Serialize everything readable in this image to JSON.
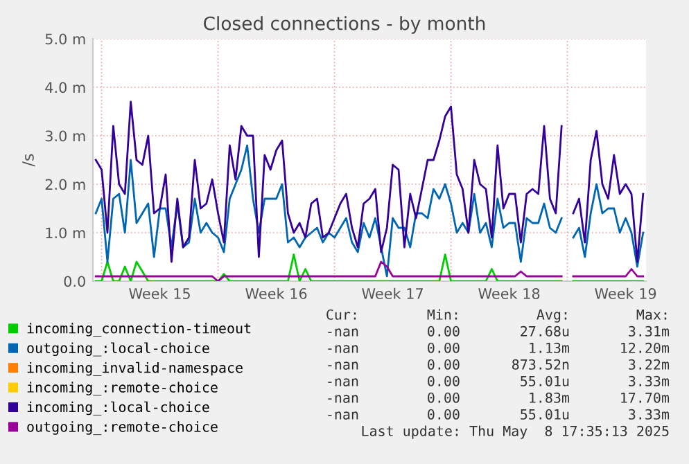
{
  "chart_data": {
    "type": "line",
    "title": "Closed connections - by month",
    "ylabel": "/s",
    "categories": [
      null,
      null,
      null,
      null,
      null,
      null,
      null,
      null,
      null,
      null,
      null,
      "Week 15",
      null,
      null,
      null,
      null,
      null,
      null,
      null,
      null,
      null,
      null,
      null,
      null,
      null,
      null,
      null,
      null,
      null,
      null,
      null,
      "Week 16",
      null,
      null,
      null,
      null,
      null,
      null,
      null,
      null,
      null,
      null,
      null,
      null,
      null,
      null,
      null,
      null,
      null,
      null,
      null,
      "Week 17",
      null,
      null,
      null,
      null,
      null,
      null,
      null,
      null,
      null,
      null,
      null,
      null,
      null,
      null,
      null,
      null,
      null,
      null,
      null,
      "Week 18",
      null,
      null,
      null,
      null,
      null,
      null,
      null,
      null,
      null,
      null,
      null,
      null,
      null,
      null,
      null,
      null,
      null,
      null,
      null,
      "Week 19",
      null,
      null,
      null
    ],
    "ylim": [
      0,
      5.0
    ],
    "yticks": [
      {
        "value": 0,
        "label": "0.0"
      },
      {
        "value": 1.0,
        "label": "1.0 m"
      },
      {
        "value": 2.0,
        "label": "2.0 m"
      },
      {
        "value": 3.0,
        "label": "3.0 m"
      },
      {
        "value": 4.0,
        "label": "4.0 m"
      },
      {
        "value": 5.0,
        "label": "5.0 m"
      }
    ],
    "grid": true,
    "legend": "bottom",
    "marker": "none",
    "line_style": "solid",
    "series": [
      {
        "name": "incoming_connection-timeout",
        "color": "#00cc00",
        "values": [
          0,
          0,
          0.4,
          0,
          0,
          0.3,
          0,
          0.4,
          0.2,
          0,
          0,
          0,
          0,
          0,
          0,
          0,
          0,
          0,
          0,
          0,
          0,
          0,
          0.15,
          0,
          0,
          0,
          0,
          0,
          0,
          0,
          0,
          0,
          0,
          0,
          0.55,
          0,
          0.25,
          0,
          0,
          0,
          0,
          0,
          0,
          0,
          0,
          0,
          0,
          0,
          0,
          0,
          0,
          0,
          0,
          0,
          0,
          0,
          0,
          0,
          0,
          0,
          0.55,
          0,
          0,
          0,
          0,
          0,
          0,
          0,
          0.25,
          0,
          0,
          0,
          0,
          0,
          0,
          0,
          0,
          0,
          0,
          0,
          0,
          null,
          0,
          0,
          0,
          0,
          0,
          0,
          0,
          0,
          0,
          0,
          0,
          0,
          0
        ]
      },
      {
        "name": "outgoing_:local-choice",
        "color": "#0066b3",
        "values": [
          1.4,
          1.7,
          0.4,
          1.7,
          1.8,
          1.0,
          2.5,
          1.2,
          1.4,
          1.6,
          0.5,
          1.5,
          1.5,
          0.7,
          1.6,
          0.7,
          0.8,
          1.7,
          1.0,
          1.2,
          1.0,
          0.9,
          0.6,
          1.7,
          2.0,
          2.3,
          2.8,
          1.7,
          1.0,
          1.7,
          1.7,
          1.7,
          2.0,
          0.8,
          0.9,
          0.7,
          0.9,
          1.0,
          1.1,
          0.8,
          1.0,
          0.9,
          1.1,
          1.3,
          0.8,
          0.6,
          1.2,
          0.9,
          1.3,
          0.7,
          0.1,
          1.3,
          1.1,
          1.1,
          0.7,
          1.4,
          1.4,
          1.3,
          1.9,
          1.7,
          2.0,
          1.6,
          1.0,
          1.2,
          1.0,
          1.8,
          1.0,
          1.2,
          0.7,
          1.7,
          1.1,
          1.2,
          1.2,
          0.4,
          1.3,
          1.2,
          1.2,
          1.6,
          1.1,
          1.0,
          1.3,
          null,
          0.9,
          1.1,
          0.5,
          1.4,
          2.0,
          1.4,
          1.5,
          1.5,
          1.0,
          1.3,
          1.0,
          0.3,
          1.0
        ]
      },
      {
        "name": "incoming_invalid-namespace",
        "color": "#ff8000",
        "values": [
          null,
          null,
          null,
          null,
          null,
          null,
          null,
          null,
          null,
          null,
          null,
          null,
          null,
          null,
          null,
          null,
          null,
          null,
          null,
          null,
          null,
          null,
          null,
          null,
          null,
          null,
          null,
          null,
          null,
          null,
          null,
          null,
          null,
          null,
          null,
          null,
          null,
          null,
          null,
          null,
          null,
          null,
          null,
          null,
          null,
          null,
          null,
          null,
          null,
          null,
          null,
          null,
          null,
          null,
          null,
          null,
          null,
          null,
          null,
          null,
          null,
          null,
          null,
          null,
          null,
          null,
          null,
          null,
          null,
          null,
          null,
          null,
          null,
          null,
          null,
          null,
          null,
          null,
          null,
          null,
          null,
          null,
          null,
          null,
          null,
          null,
          null,
          null,
          null,
          null,
          null,
          null,
          null,
          null,
          null
        ]
      },
      {
        "name": "incoming_:remote-choice",
        "color": "#ffcc00",
        "values": [
          null,
          null,
          null,
          null,
          null,
          null,
          null,
          null,
          null,
          null,
          null,
          null,
          null,
          null,
          null,
          null,
          null,
          null,
          null,
          null,
          null,
          null,
          null,
          null,
          null,
          null,
          null,
          null,
          null,
          null,
          null,
          null,
          null,
          null,
          null,
          null,
          null,
          null,
          null,
          null,
          null,
          null,
          null,
          null,
          null,
          null,
          null,
          null,
          null,
          null,
          null,
          null,
          null,
          null,
          null,
          null,
          null,
          null,
          null,
          null,
          null,
          null,
          null,
          null,
          null,
          null,
          null,
          null,
          null,
          null,
          null,
          null,
          null,
          null,
          null,
          null,
          null,
          null,
          null,
          null,
          null,
          null,
          null,
          null,
          null,
          null,
          null,
          null,
          null,
          null,
          null,
          null,
          null,
          null,
          null
        ]
      },
      {
        "name": "incoming_:local-choice",
        "color": "#330099",
        "values": [
          2.5,
          2.3,
          1.0,
          3.2,
          2.0,
          1.8,
          3.7,
          2.5,
          2.4,
          3.0,
          1.4,
          1.5,
          2.2,
          0.4,
          1.7,
          0.7,
          0.9,
          2.5,
          1.5,
          1.6,
          2.1,
          1.4,
          0.8,
          2.8,
          2.1,
          3.2,
          3.0,
          3.0,
          0.5,
          2.6,
          2.3,
          2.7,
          2.9,
          1.4,
          1.0,
          1.2,
          0.9,
          1.6,
          1.7,
          0.9,
          1.0,
          1.3,
          1.6,
          1.8,
          1.1,
          0.7,
          1.6,
          1.7,
          1.9,
          0.6,
          1.1,
          2.4,
          2.3,
          0.7,
          1.8,
          1.3,
          1.9,
          2.5,
          2.5,
          2.9,
          3.4,
          3.6,
          2.2,
          1.9,
          1.0,
          2.5,
          2.0,
          1.9,
          0.9,
          2.8,
          1.5,
          1.8,
          1.8,
          0.8,
          1.8,
          1.9,
          1.8,
          3.2,
          1.7,
          1.4,
          3.2,
          null,
          1.4,
          1.7,
          0.8,
          2.5,
          3.1,
          2.0,
          1.7,
          2.6,
          1.8,
          2.0,
          1.8,
          0.4,
          1.8
        ]
      },
      {
        "name": "outgoing_:remote-choice",
        "color": "#990099",
        "values": [
          0.1,
          0.1,
          0.1,
          0.1,
          0.1,
          0.1,
          0.1,
          0.1,
          0.1,
          0.1,
          0.1,
          0.1,
          0.1,
          0.1,
          0.1,
          0.1,
          0.1,
          0.1,
          0.1,
          0.1,
          0.1,
          0.0,
          0.1,
          0.1,
          0.1,
          0.1,
          0.1,
          0.1,
          0.1,
          0.1,
          0.1,
          0.1,
          0.1,
          0.1,
          0.1,
          0.1,
          0.1,
          0.1,
          0.1,
          0.1,
          0.1,
          0.1,
          0.1,
          0.1,
          0.1,
          0.1,
          0.1,
          0.1,
          0.1,
          0.4,
          0.3,
          0.1,
          0.1,
          0.1,
          0.1,
          0.1,
          0.1,
          0.1,
          0.1,
          0.1,
          0.1,
          0.1,
          0.1,
          0.1,
          0.1,
          0.1,
          0.1,
          0.1,
          0.1,
          0.1,
          0.1,
          0.1,
          0.1,
          0.2,
          0.1,
          0.1,
          0.1,
          0.1,
          0.1,
          0.1,
          0.1,
          null,
          0.1,
          0.1,
          0.1,
          0.1,
          0.1,
          0.1,
          0.1,
          0.1,
          0.1,
          0.1,
          0.25,
          0.1,
          0.1
        ]
      }
    ],
    "annotations": [
      "Cur:",
      "Min:",
      "Avg:",
      "Max:",
      "-nan",
      "0.00",
      "27.68u",
      "3.31m",
      "-nan",
      "0.00",
      "1.13m",
      "12.20m",
      "-nan",
      "0.00",
      "873.52n",
      "3.22m",
      "-nan",
      "0.00",
      "55.01u",
      "3.33m",
      "-nan",
      "0.00",
      "1.83m",
      "17.70m",
      "-nan",
      "0.00",
      "55.01u",
      "3.33m",
      "Last update: Thu May  8 17:35:13 2025"
    ]
  }
}
